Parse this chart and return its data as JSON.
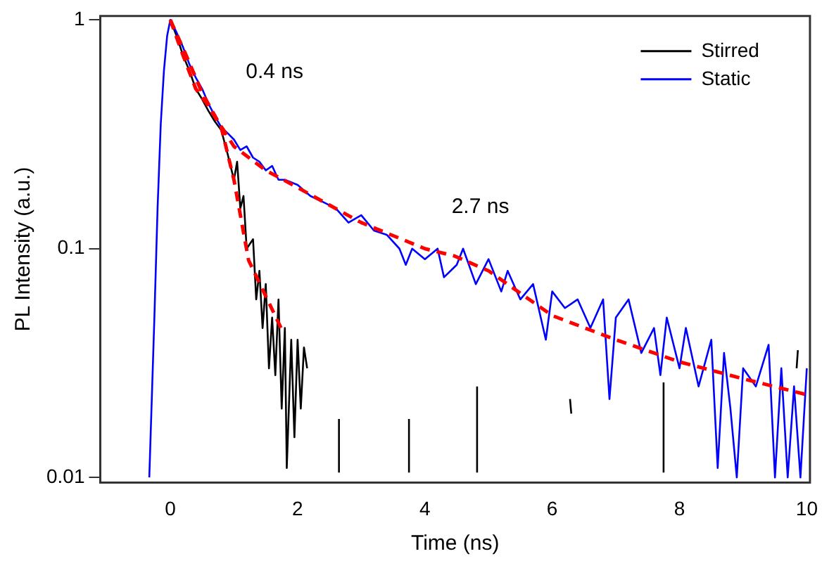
{
  "chart_data": {
    "type": "line",
    "xlabel": "Time (ns)",
    "ylabel": "PL Intensity (a.u.)",
    "xlim": [
      -1.1,
      10.05
    ],
    "xticks": [
      0,
      2,
      4,
      6,
      8,
      10
    ],
    "ylim": [
      0.0095,
      1.04
    ],
    "yticks": [
      0.01,
      0.1,
      1
    ],
    "log": "y",
    "grid": false,
    "legend": "top right",
    "marker": "none",
    "line_style": "solid",
    "annotations": [
      "0.4 ns",
      "2.7 ns"
    ],
    "series": [
      {
        "name": "Stirred",
        "color": "#000000",
        "x": [
          0,
          0.1,
          0.2,
          0.3,
          0.4,
          0.5,
          0.6,
          0.7,
          0.8,
          0.9,
          1.0,
          1.05,
          1.1,
          1.15,
          1.2,
          1.3,
          1.35,
          1.4,
          1.45,
          1.5,
          1.55,
          1.6,
          1.65,
          1.7,
          1.75,
          1.8,
          1.83,
          1.9,
          1.95,
          2.0,
          2.05,
          2.1,
          2.15,
          2.4,
          2.65,
          2.65,
          2.7,
          3.75,
          3.75,
          3.8,
          4.82,
          4.82,
          4.9,
          6.28,
          6.3,
          6.4,
          7.75,
          7.75,
          7.8,
          9.84,
          9.86
        ],
        "values": [
          1,
          0.85,
          0.7,
          0.6,
          0.5,
          0.45,
          0.4,
          0.36,
          0.33,
          0.26,
          0.2,
          0.24,
          0.15,
          0.17,
          0.1,
          0.11,
          0.06,
          0.08,
          0.045,
          0.07,
          0.03,
          0.05,
          0.028,
          0.06,
          0.02,
          0.045,
          0.011,
          0.04,
          0.015,
          0.04,
          0.02,
          0.037,
          0.03,
          null,
          0.0105,
          0.018,
          null,
          0.0105,
          0.018,
          null,
          0.0105,
          0.025,
          null,
          0.022,
          0.019,
          null,
          0.0105,
          0.026,
          null,
          0.03,
          0.036
        ]
      },
      {
        "name": "Static",
        "color": "#0000ff",
        "x": [
          -0.33,
          -0.25,
          -0.2,
          -0.15,
          -0.1,
          -0.05,
          0,
          0.1,
          0.2,
          0.3,
          0.4,
          0.5,
          0.6,
          0.7,
          0.8,
          0.9,
          1.0,
          1.1,
          1.2,
          1.3,
          1.4,
          1.5,
          1.6,
          1.7,
          1.8,
          2.0,
          2.2,
          2.4,
          2.6,
          2.8,
          3.0,
          3.2,
          3.4,
          3.6,
          3.7,
          3.8,
          4.0,
          4.2,
          4.3,
          4.5,
          4.6,
          4.8,
          5.0,
          5.2,
          5.3,
          5.5,
          5.7,
          5.9,
          6.0,
          6.2,
          6.4,
          6.6,
          6.8,
          6.9,
          7.0,
          7.2,
          7.4,
          7.6,
          7.7,
          7.8,
          8.0,
          8.1,
          8.3,
          8.5,
          8.6,
          8.7,
          8.8,
          8.9,
          9.0,
          9.2,
          9.4,
          9.5,
          9.6,
          9.7,
          9.8,
          9.9,
          10.0
        ],
        "values": [
          0.01,
          0.05,
          0.15,
          0.35,
          0.6,
          0.85,
          1,
          0.88,
          0.76,
          0.64,
          0.56,
          0.5,
          0.43,
          0.38,
          0.34,
          0.32,
          0.3,
          0.27,
          0.28,
          0.25,
          0.24,
          0.22,
          0.23,
          0.2,
          0.2,
          0.19,
          0.17,
          0.16,
          0.15,
          0.13,
          0.14,
          0.12,
          0.115,
          0.1,
          0.085,
          0.1,
          0.09,
          0.1,
          0.075,
          0.085,
          0.1,
          0.07,
          0.09,
          0.065,
          0.08,
          0.06,
          0.07,
          0.04,
          0.065,
          0.055,
          0.06,
          0.045,
          0.06,
          0.022,
          0.05,
          0.06,
          0.035,
          0.045,
          0.028,
          0.05,
          0.03,
          0.045,
          0.025,
          0.04,
          0.011,
          0.035,
          0.02,
          0.01,
          0.03,
          0.025,
          0.038,
          0.01,
          0.03,
          0.01,
          0.025,
          0.01,
          0.03
        ]
      },
      {
        "color": "#ff0000",
        "line_style": "dashed",
        "x": [
          0,
          0.2,
          0.4,
          0.6,
          0.8,
          1.0,
          1.23,
          1.5,
          1.74
        ],
        "values": [
          1,
          0.7,
          0.5,
          0.42,
          0.34,
          0.2,
          0.089,
          0.062,
          0.045
        ]
      },
      {
        "color": "#ff0000",
        "line_style": "dashed",
        "x": [
          0,
          0.25,
          0.5,
          0.75,
          1,
          1.5,
          2,
          3,
          4,
          4.46,
          5,
          6,
          7,
          8,
          9,
          10
        ],
        "values": [
          1,
          0.7,
          0.48,
          0.36,
          0.28,
          0.22,
          0.185,
          0.13,
          0.1,
          0.093,
          0.08,
          0.051,
          0.04,
          0.032,
          0.027,
          0.023
        ]
      }
    ]
  }
}
